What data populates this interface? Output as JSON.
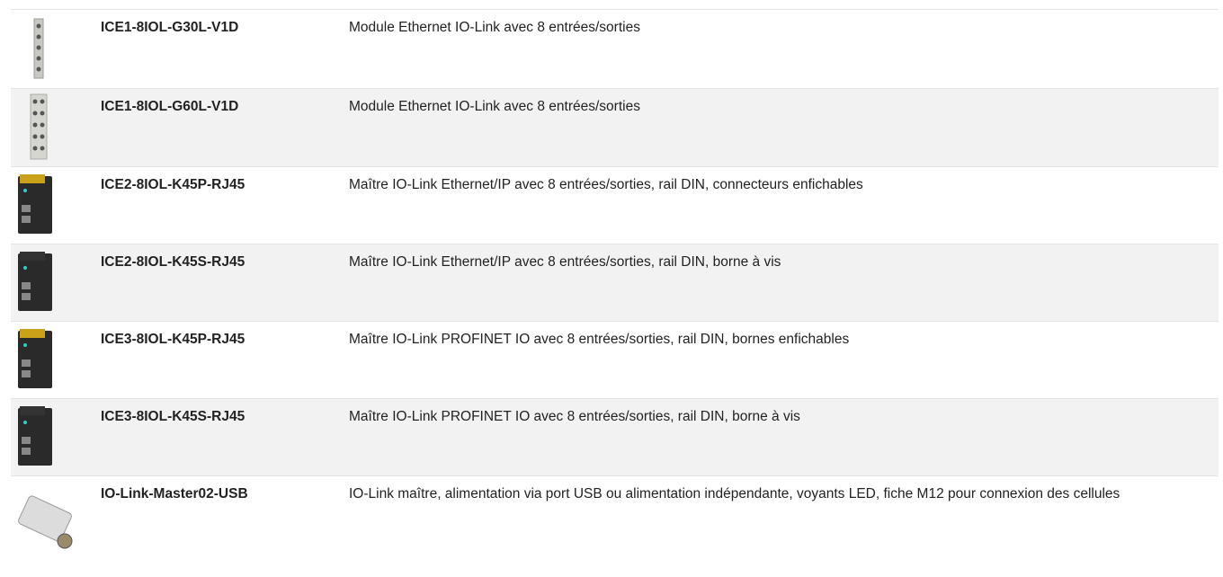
{
  "rows": [
    {
      "code": "ICE1-8IOL-G30L-V1D",
      "description": "Module Ethernet IO-Link avec 8 entrées/sorties"
    },
    {
      "code": "ICE1-8IOL-G60L-V1D",
      "description": "Module Ethernet IO-Link avec 8 entrées/sorties"
    },
    {
      "code": "ICE2-8IOL-K45P-RJ45",
      "description": "Maître IO-Link Ethernet/IP avec 8 entrées/sorties, rail DIN, connecteurs enfichables"
    },
    {
      "code": "ICE2-8IOL-K45S-RJ45",
      "description": "Maître IO-Link Ethernet/IP avec 8 entrées/sorties, rail DIN, borne à vis"
    },
    {
      "code": "ICE3-8IOL-K45P-RJ45",
      "description": "Maître IO-Link PROFINET IO avec 8 entrées/sorties, rail DIN, bornes enfichables"
    },
    {
      "code": "ICE3-8IOL-K45S-RJ45",
      "description": "Maître IO-Link PROFINET IO avec 8 entrées/sorties, rail DIN, borne à vis"
    },
    {
      "code": "IO-Link-Master02-USB",
      "description": "IO-Link maître, alimentation via port USB ou alimentation indépendante, voyants LED, fiche M12 pour connexion des cellules"
    }
  ]
}
